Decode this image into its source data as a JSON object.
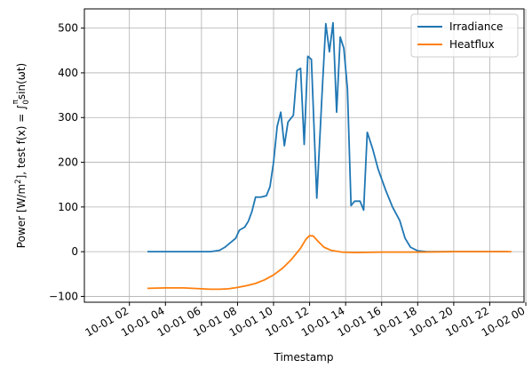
{
  "chart_data": {
    "type": "line",
    "title": "",
    "xlabel": "Timestamp",
    "ylabel": "Power [W/m²], test f(x) = ∫₀^π sin(ωt)",
    "ylabel_parts": {
      "prefix": "Power [W/m",
      "sup": "2",
      "middle": "], test f(x) = ∫",
      "int_lower": "0",
      "int_upper": "π",
      "suffix": "sin(ωt)"
    },
    "grid": true,
    "legend_position": "top-right",
    "x_range_hours": [
      -0.5,
      23.9
    ],
    "ylim": [
      -113,
      543
    ],
    "x_ticks": [
      {
        "label": "10-01 02",
        "hour": 2
      },
      {
        "label": "10-01 04",
        "hour": 4
      },
      {
        "label": "10-01 06",
        "hour": 6
      },
      {
        "label": "10-01 08",
        "hour": 8
      },
      {
        "label": "10-01 10",
        "hour": 10
      },
      {
        "label": "10-01 12",
        "hour": 12
      },
      {
        "label": "10-01 14",
        "hour": 14
      },
      {
        "label": "10-01 16",
        "hour": 16
      },
      {
        "label": "10-01 18",
        "hour": 18
      },
      {
        "label": "10-01 20",
        "hour": 20
      },
      {
        "label": "10-01 22",
        "hour": 22
      },
      {
        "label": "10-02 00",
        "hour": 24
      }
    ],
    "y_ticks": [
      -100,
      0,
      100,
      200,
      300,
      400,
      500
    ],
    "series": [
      {
        "name": "Irradiance",
        "color": "#1f77b4",
        "points": [
          [
            3.0,
            0
          ],
          [
            5.0,
            0
          ],
          [
            6.5,
            0
          ],
          [
            7.0,
            3
          ],
          [
            7.3,
            10
          ],
          [
            7.6,
            20
          ],
          [
            7.9,
            30
          ],
          [
            8.1,
            48
          ],
          [
            8.4,
            55
          ],
          [
            8.6,
            68
          ],
          [
            8.8,
            90
          ],
          [
            9.0,
            122
          ],
          [
            9.3,
            122
          ],
          [
            9.6,
            125
          ],
          [
            9.8,
            145
          ],
          [
            10.0,
            200
          ],
          [
            10.2,
            280
          ],
          [
            10.4,
            312
          ],
          [
            10.6,
            237
          ],
          [
            10.8,
            290
          ],
          [
            11.1,
            305
          ],
          [
            11.3,
            405
          ],
          [
            11.5,
            410
          ],
          [
            11.7,
            240
          ],
          [
            11.9,
            437
          ],
          [
            12.1,
            430
          ],
          [
            12.4,
            120
          ],
          [
            12.7,
            360
          ],
          [
            12.9,
            510
          ],
          [
            13.1,
            447
          ],
          [
            13.3,
            512
          ],
          [
            13.5,
            312
          ],
          [
            13.7,
            480
          ],
          [
            13.9,
            455
          ],
          [
            14.1,
            365
          ],
          [
            14.3,
            103
          ],
          [
            14.5,
            113
          ],
          [
            14.8,
            113
          ],
          [
            15.0,
            93
          ],
          [
            15.2,
            267
          ],
          [
            15.5,
            230
          ],
          [
            15.8,
            185
          ],
          [
            16.2,
            140
          ],
          [
            16.6,
            100
          ],
          [
            17.0,
            70
          ],
          [
            17.3,
            30
          ],
          [
            17.6,
            10
          ],
          [
            18.0,
            2
          ],
          [
            18.5,
            0
          ],
          [
            20.0,
            0
          ],
          [
            23.0,
            0
          ]
        ]
      },
      {
        "name": "Heatflux",
        "color": "#ff7f0e",
        "points": [
          [
            3.0,
            -82
          ],
          [
            4.0,
            -81
          ],
          [
            5.0,
            -81
          ],
          [
            6.0,
            -83
          ],
          [
            6.5,
            -84
          ],
          [
            7.0,
            -84
          ],
          [
            7.5,
            -83
          ],
          [
            8.0,
            -80
          ],
          [
            8.5,
            -76
          ],
          [
            9.0,
            -71
          ],
          [
            9.5,
            -63
          ],
          [
            10.0,
            -52
          ],
          [
            10.5,
            -37
          ],
          [
            11.0,
            -17
          ],
          [
            11.5,
            8
          ],
          [
            11.8,
            28
          ],
          [
            12.0,
            36
          ],
          [
            12.2,
            35
          ],
          [
            12.5,
            22
          ],
          [
            12.8,
            10
          ],
          [
            13.2,
            3
          ],
          [
            13.8,
            -1
          ],
          [
            14.5,
            -2
          ],
          [
            16.0,
            -1
          ],
          [
            18.0,
            -1
          ],
          [
            20.0,
            0
          ],
          [
            21.0,
            0
          ],
          [
            22.0,
            0
          ],
          [
            23.2,
            0
          ]
        ]
      }
    ]
  }
}
